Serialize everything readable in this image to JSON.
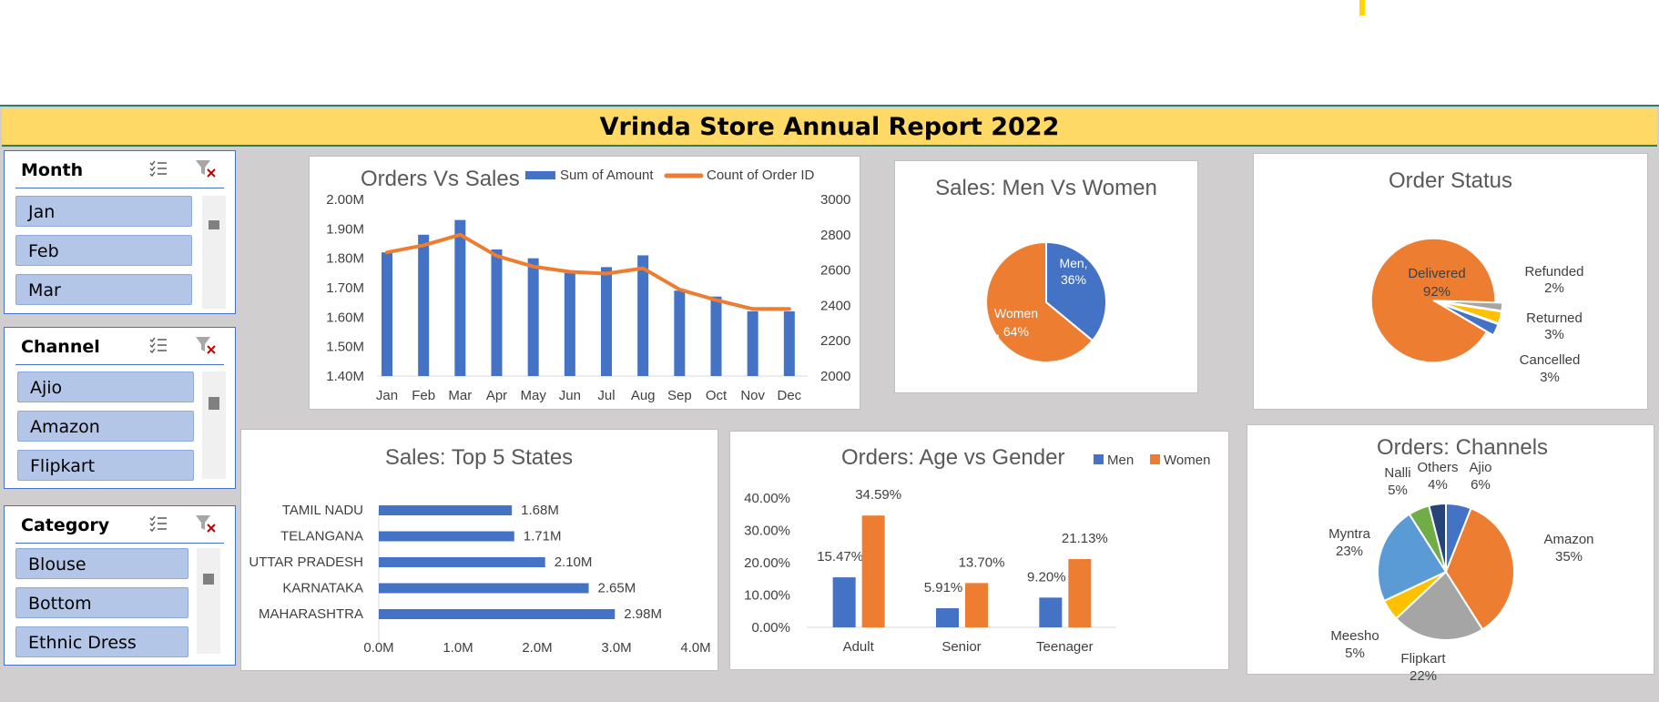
{
  "title": "Vrinda Store Annual Report 2022",
  "colors": {
    "blue": "#4472c4",
    "orange": "#ed7d31",
    "gray": "#a5a5a5",
    "yellow": "#ffc000",
    "lightblue": "#5b9bd5",
    "green": "#70ad47",
    "navy": "#264478"
  },
  "slicers": [
    {
      "title": "Month",
      "items": [
        "Jan",
        "Feb",
        "Mar"
      ]
    },
    {
      "title": "Channel",
      "items": [
        "Ajio",
        "Amazon",
        "Flipkart"
      ]
    },
    {
      "title": "Category",
      "items": [
        "Blouse",
        "Bottom",
        "Ethnic Dress"
      ]
    }
  ],
  "chart_data": [
    {
      "type": "bar",
      "title": "Orders Vs Sales",
      "categories": [
        "Jan",
        "Feb",
        "Mar",
        "Apr",
        "May",
        "Jun",
        "Jul",
        "Aug",
        "Sep",
        "Oct",
        "Nov",
        "Dec"
      ],
      "series": [
        {
          "name": "Sum of Amount",
          "kind": "bar",
          "axis": "left",
          "values": [
            1.82,
            1.88,
            1.93,
            1.83,
            1.8,
            1.75,
            1.77,
            1.81,
            1.69,
            1.67,
            1.62,
            1.62
          ]
        },
        {
          "name": "Count of Order ID",
          "kind": "line",
          "axis": "right",
          "values": [
            2700,
            2740,
            2800,
            2680,
            2620,
            2590,
            2580,
            2610,
            2490,
            2430,
            2380,
            2380
          ]
        }
      ],
      "yticks_left": [
        "2.00M",
        "1.90M",
        "1.80M",
        "1.70M",
        "1.60M",
        "1.50M",
        "1.40M"
      ],
      "yticks_right": [
        "3000",
        "2800",
        "2600",
        "2400",
        "2200",
        "2000"
      ],
      "ylim_left": [
        1.4,
        2.0
      ],
      "ylim_right": [
        2000,
        3000
      ]
    },
    {
      "type": "pie",
      "title": "Sales: Men Vs Women",
      "slices": [
        {
          "name": "Men",
          "value": 36,
          "label": "Men,",
          "pct": "36%"
        },
        {
          "name": "Women",
          "value": 64,
          "label": "Women",
          "pct": ", 64%"
        }
      ]
    },
    {
      "type": "pie",
      "title": "Order Status",
      "slices": [
        {
          "name": "Delivered",
          "value": 92,
          "pct": "92%"
        },
        {
          "name": "Refunded",
          "value": 2,
          "pct": "2%"
        },
        {
          "name": "Returned",
          "value": 3,
          "pct": "3%"
        },
        {
          "name": "Cancelled",
          "value": 3,
          "pct": "3%"
        }
      ]
    },
    {
      "type": "bar",
      "orientation": "horizontal",
      "title": "Sales: Top 5 States",
      "categories": [
        "TAMIL NADU",
        "TELANGANA",
        "UTTAR PRADESH",
        "KARNATAKA",
        "MAHARASHTRA"
      ],
      "values": [
        1.68,
        1.71,
        2.1,
        2.65,
        2.98
      ],
      "value_labels": [
        "1.68M",
        "1.71M",
        "2.10M",
        "2.65M",
        "2.98M"
      ],
      "xticks": [
        "0.0M",
        "1.0M",
        "2.0M",
        "3.0M",
        "4.0M"
      ],
      "xlim": [
        0,
        4
      ]
    },
    {
      "type": "bar",
      "title": "Orders: Age vs Gender",
      "categories": [
        "Adult",
        "Senior",
        "Teenager"
      ],
      "series": [
        {
          "name": "Men",
          "values": [
            15.47,
            5.91,
            9.2
          ],
          "labels": [
            "15.47%",
            "5.91%",
            "9.20%"
          ]
        },
        {
          "name": "Women",
          "values": [
            34.59,
            13.7,
            21.13
          ],
          "labels": [
            "34.59%",
            "13.70%",
            "21.13%"
          ]
        }
      ],
      "yticks": [
        "40.00%",
        "30.00%",
        "20.00%",
        "10.00%",
        "0.00%"
      ],
      "ylim": [
        0,
        40
      ]
    },
    {
      "type": "pie",
      "title": "Orders: Channels",
      "slices": [
        {
          "name": "Ajio",
          "value": 6,
          "pct": "6%"
        },
        {
          "name": "Amazon",
          "value": 35,
          "pct": "35%"
        },
        {
          "name": "Flipkart",
          "value": 22,
          "pct": "22%"
        },
        {
          "name": "Meesho",
          "value": 5,
          "pct": "5%"
        },
        {
          "name": "Myntra",
          "value": 23,
          "pct": "23%"
        },
        {
          "name": "Nalli",
          "value": 5,
          "pct": "5%"
        },
        {
          "name": "Others",
          "value": 4,
          "pct": "4%"
        }
      ]
    }
  ]
}
